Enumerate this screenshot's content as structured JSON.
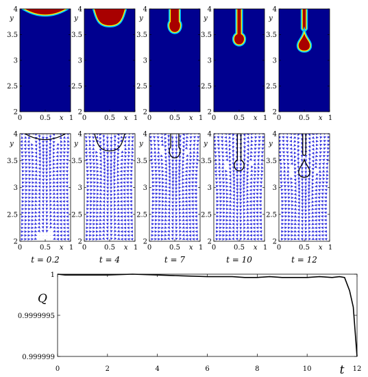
{
  "chart_data": [
    {
      "type": "heatmap",
      "description_panels": "phase field snapshots",
      "xlabel": "x",
      "ylabel": "y",
      "xlim": [
        0,
        1
      ],
      "ylim": [
        2,
        4
      ],
      "xticks": [
        "0",
        "0.5",
        "1"
      ],
      "yticks": [
        "2",
        "2.5",
        "3",
        "3.5",
        "4"
      ],
      "colors": {
        "background": "#00008f",
        "drop": "#a80000",
        "rim1": "#00c8ff",
        "rim2": "#ffff00"
      },
      "snapshots": [
        {
          "t": 0.2,
          "shape": "cap",
          "cap_bottom_y": 3.9
        },
        {
          "t": 4,
          "shape": "bulge",
          "neck_half_width": 0.25,
          "tip_y": 3.68
        },
        {
          "t": 7,
          "shape": "neck-drop",
          "neck_half_width": 0.08,
          "drop_center_y": 3.66,
          "drop_radius": 0.11
        },
        {
          "t": 10,
          "shape": "neck-drop",
          "neck_half_width": 0.035,
          "drop_center_y": 3.42,
          "drop_radius": 0.11
        },
        {
          "t": 12,
          "shape": "pinched",
          "stub_bottom_y": 3.6,
          "drop_center_y": 3.3,
          "drop_radius": 0.11
        }
      ]
    },
    {
      "type": "scatter",
      "description_panels": "velocity field with interface contour",
      "xlabel": "x",
      "ylabel": "y",
      "xlim": [
        0,
        1
      ],
      "ylim": [
        2,
        4
      ],
      "xticks": [
        "0",
        "0.5",
        "1"
      ],
      "yticks": [
        "2",
        "2.5",
        "3",
        "3.5",
        "4"
      ],
      "arrow_color": "#3a3ae0",
      "time_labels": [
        "t = 0.2",
        "t = 4",
        "t = 7",
        "t = 10",
        "t = 12"
      ]
    },
    {
      "type": "line",
      "xlabel": "t",
      "ylabel": "Q",
      "xlim": [
        0,
        12
      ],
      "ylim": [
        0.999999,
        1
      ],
      "xticks": [
        "0",
        "2",
        "4",
        "6",
        "8",
        "10",
        "12"
      ],
      "yticks": [
        "0.999999",
        "0.9999995",
        "1"
      ],
      "series": [
        {
          "x": [
            0,
            0.3,
            1,
            2,
            3,
            4,
            5,
            6,
            6.5,
            7,
            7.5,
            8,
            8.5,
            9,
            9.5,
            10,
            10.5,
            11,
            11.3,
            11.5,
            11.7,
            11.85,
            12
          ],
          "y": [
            1,
            0.99999999,
            0.99999999,
            0.99999999,
            1,
            0.99999999,
            0.99999998,
            0.99999997,
            0.99999997,
            0.99999997,
            0.99999996,
            0.99999996,
            0.99999997,
            0.99999996,
            0.99999996,
            0.99999996,
            0.99999997,
            0.99999996,
            0.99999997,
            0.99999996,
            0.9999998,
            0.9999996,
            0.999999
          ]
        }
      ]
    }
  ]
}
